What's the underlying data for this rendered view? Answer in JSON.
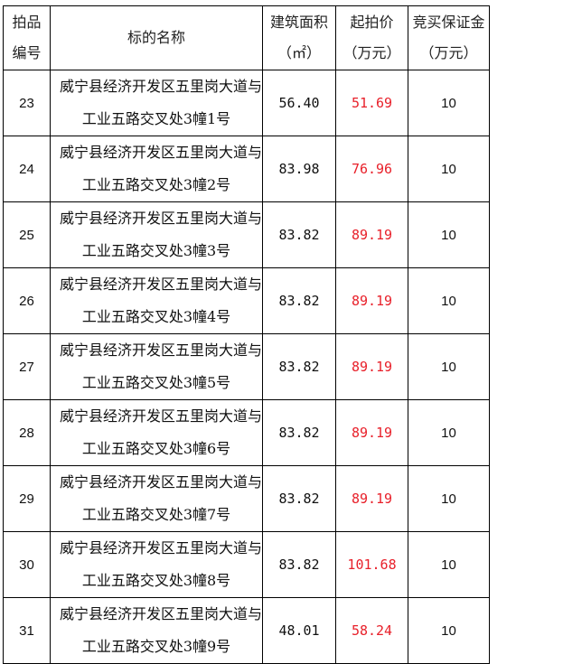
{
  "headers": {
    "no_1": "拍品",
    "no_2": "编号",
    "name": "标的名称",
    "area_1": "建筑面积",
    "area_2": "（㎡）",
    "price_1": "起拍价",
    "price_2": "（万元）",
    "deposit_1": "竞买保证金",
    "deposit_2": "（万元）"
  },
  "colors": {
    "price": "#e8202a"
  },
  "rows": [
    {
      "no": "23",
      "name_1": "威宁县经济开发区五里岗大道与",
      "name_2": "工业五路交叉处3幢1号",
      "area": "56.40",
      "price": "51.69",
      "deposit": "10"
    },
    {
      "no": "24",
      "name_1": "威宁县经济开发区五里岗大道与",
      "name_2": "工业五路交叉处3幢2号",
      "area": "83.98",
      "price": "76.96",
      "deposit": "10"
    },
    {
      "no": "25",
      "name_1": "威宁县经济开发区五里岗大道与",
      "name_2": "工业五路交叉处3幢3号",
      "area": "83.82",
      "price": "89.19",
      "deposit": "10"
    },
    {
      "no": "26",
      "name_1": "威宁县经济开发区五里岗大道与",
      "name_2": "工业五路交叉处3幢4号",
      "area": "83.82",
      "price": "89.19",
      "deposit": "10"
    },
    {
      "no": "27",
      "name_1": "威宁县经济开发区五里岗大道与",
      "name_2": "工业五路交叉处3幢5号",
      "area": "83.82",
      "price": "89.19",
      "deposit": "10"
    },
    {
      "no": "28",
      "name_1": "威宁县经济开发区五里岗大道与",
      "name_2": "工业五路交叉处3幢6号",
      "area": "83.82",
      "price": "89.19",
      "deposit": "10"
    },
    {
      "no": "29",
      "name_1": "威宁县经济开发区五里岗大道与",
      "name_2": "工业五路交叉处3幢7号",
      "area": "83.82",
      "price": "89.19",
      "deposit": "10"
    },
    {
      "no": "30",
      "name_1": "威宁县经济开发区五里岗大道与",
      "name_2": "工业五路交叉处3幢8号",
      "area": "83.82",
      "price": "101.68",
      "deposit": "10"
    },
    {
      "no": "31",
      "name_1": "威宁县经济开发区五里岗大道与",
      "name_2": "工业五路交叉处3幢9号",
      "area": "48.01",
      "price": "58.24",
      "deposit": "10"
    }
  ]
}
